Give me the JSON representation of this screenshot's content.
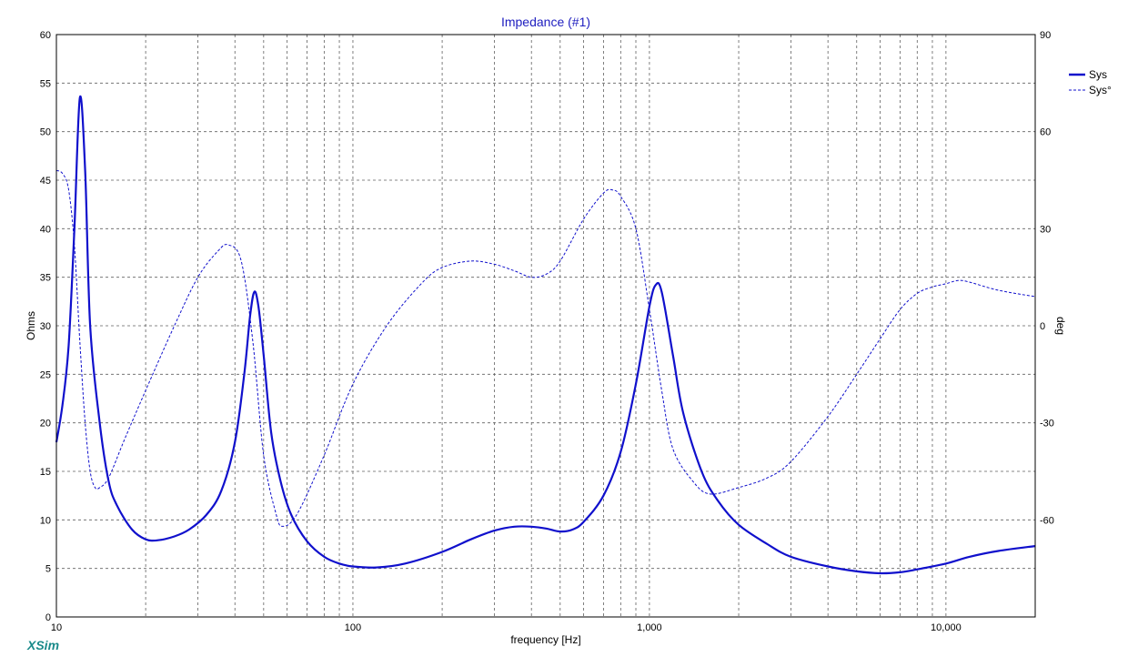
{
  "chart_data": {
    "type": "line",
    "title": "Impedance (#1)",
    "xlabel": "frequency [Hz]",
    "ylabel_left": "Ohms",
    "ylabel_right": "deg",
    "x_scale": "log",
    "xlim": [
      10,
      20000
    ],
    "ylim_left": [
      0,
      60
    ],
    "ylim_right": [
      -90,
      90
    ],
    "x_tick_labels": [
      "10",
      "100",
      "1,000",
      "10,000"
    ],
    "y_left_ticks": [
      "0",
      "5",
      "10",
      "15",
      "20",
      "25",
      "30",
      "35",
      "40",
      "45",
      "50",
      "55",
      "60"
    ],
    "y_right_ticks": [
      "90",
      "60",
      "30",
      "0",
      "-30",
      "-60"
    ],
    "grid": true,
    "legend_position": "top-right",
    "legend": [
      {
        "label": "Sys",
        "style": "solid"
      },
      {
        "label": "Sys°",
        "style": "dashed"
      }
    ],
    "colors": {
      "curve": "#1010cc",
      "title": "#2020c0",
      "grid": "#606060",
      "brand": "#1a8a8a"
    },
    "series": [
      {
        "name": "Sys",
        "axis": "left",
        "unit": "Ohms",
        "points": [
          [
            10,
            18
          ],
          [
            10.5,
            22
          ],
          [
            11,
            28
          ],
          [
            11.5,
            40
          ],
          [
            12,
            53.5
          ],
          [
            12.5,
            46
          ],
          [
            13,
            30
          ],
          [
            14,
            20
          ],
          [
            15,
            14
          ],
          [
            16,
            11.5
          ],
          [
            18,
            9
          ],
          [
            20,
            8
          ],
          [
            22,
            7.9
          ],
          [
            25,
            8.3
          ],
          [
            28,
            9
          ],
          [
            32,
            10.5
          ],
          [
            36,
            13
          ],
          [
            40,
            18
          ],
          [
            43,
            25
          ],
          [
            45,
            31
          ],
          [
            46.5,
            33.5
          ],
          [
            48,
            32
          ],
          [
            50,
            27
          ],
          [
            53,
            19
          ],
          [
            57,
            14
          ],
          [
            62,
            10.5
          ],
          [
            70,
            7.8
          ],
          [
            80,
            6.2
          ],
          [
            90,
            5.5
          ],
          [
            100,
            5.2
          ],
          [
            120,
            5.1
          ],
          [
            150,
            5.5
          ],
          [
            200,
            6.7
          ],
          [
            250,
            8
          ],
          [
            300,
            8.9
          ],
          [
            350,
            9.3
          ],
          [
            400,
            9.3
          ],
          [
            450,
            9.1
          ],
          [
            500,
            8.8
          ],
          [
            550,
            9
          ],
          [
            600,
            9.8
          ],
          [
            700,
            12.5
          ],
          [
            800,
            17
          ],
          [
            900,
            24
          ],
          [
            1000,
            32
          ],
          [
            1050,
            34.2
          ],
          [
            1100,
            33.5
          ],
          [
            1200,
            27
          ],
          [
            1300,
            21
          ],
          [
            1500,
            15
          ],
          [
            1700,
            12
          ],
          [
            2000,
            9.5
          ],
          [
            2500,
            7.5
          ],
          [
            3000,
            6.2
          ],
          [
            4000,
            5.2
          ],
          [
            5000,
            4.7
          ],
          [
            6000,
            4.5
          ],
          [
            7000,
            4.6
          ],
          [
            8000,
            4.9
          ],
          [
            10000,
            5.5
          ],
          [
            12000,
            6.2
          ],
          [
            15000,
            6.8
          ],
          [
            20000,
            7.3
          ]
        ]
      },
      {
        "name": "Sys°",
        "axis": "right",
        "unit": "deg",
        "points": [
          [
            10,
            48
          ],
          [
            10.5,
            47
          ],
          [
            11,
            42
          ],
          [
            11.5,
            25
          ],
          [
            12,
            -5
          ],
          [
            12.5,
            -30
          ],
          [
            13,
            -45
          ],
          [
            13.5,
            -50
          ],
          [
            14,
            -50
          ],
          [
            15,
            -47
          ],
          [
            17,
            -35
          ],
          [
            20,
            -20
          ],
          [
            25,
            0
          ],
          [
            30,
            15
          ],
          [
            35,
            23
          ],
          [
            38,
            25
          ],
          [
            42,
            20
          ],
          [
            46,
            -5
          ],
          [
            50,
            -40
          ],
          [
            55,
            -58
          ],
          [
            58,
            -62
          ],
          [
            65,
            -58
          ],
          [
            80,
            -40
          ],
          [
            100,
            -18
          ],
          [
            130,
            0
          ],
          [
            170,
            13
          ],
          [
            200,
            18
          ],
          [
            250,
            20
          ],
          [
            300,
            19
          ],
          [
            350,
            17
          ],
          [
            400,
            15
          ],
          [
            450,
            16
          ],
          [
            500,
            20
          ],
          [
            600,
            33
          ],
          [
            700,
            41
          ],
          [
            750,
            42
          ],
          [
            800,
            40
          ],
          [
            900,
            30
          ],
          [
            1000,
            5
          ],
          [
            1100,
            -20
          ],
          [
            1200,
            -38
          ],
          [
            1400,
            -48
          ],
          [
            1600,
            -52
          ],
          [
            2000,
            -50
          ],
          [
            2500,
            -47
          ],
          [
            3000,
            -42
          ],
          [
            4000,
            -28
          ],
          [
            5000,
            -15
          ],
          [
            6000,
            -4
          ],
          [
            7000,
            5
          ],
          [
            8000,
            10
          ],
          [
            9000,
            12
          ],
          [
            10000,
            13
          ],
          [
            11000,
            14
          ],
          [
            12000,
            13.5
          ],
          [
            15000,
            11
          ],
          [
            20000,
            9
          ]
        ]
      }
    ]
  },
  "branding": {
    "logo": "XSim"
  }
}
